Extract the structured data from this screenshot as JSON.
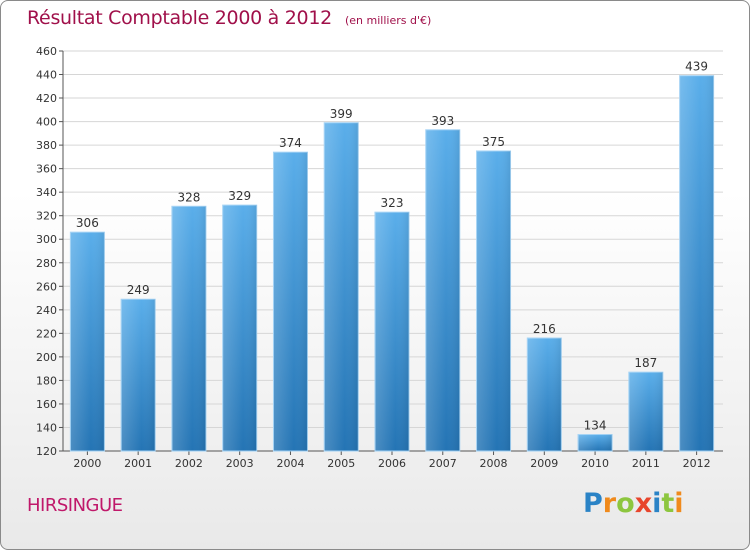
{
  "chart_data": {
    "type": "bar",
    "title": "Résultat Comptable 2000 à 2012",
    "subtitle": "(en milliers d'€)",
    "categories": [
      "2000",
      "2001",
      "2002",
      "2003",
      "2004",
      "2005",
      "2006",
      "2007",
      "2008",
      "2009",
      "2010",
      "2011",
      "2012"
    ],
    "values": [
      306,
      249,
      328,
      329,
      374,
      399,
      323,
      393,
      375,
      216,
      134,
      187,
      439
    ],
    "xlabel": "",
    "ylabel": "",
    "ylim": [
      120,
      460
    ],
    "yticks": [
      120,
      140,
      160,
      180,
      200,
      220,
      240,
      260,
      280,
      300,
      320,
      340,
      360,
      380,
      400,
      420,
      440,
      460
    ],
    "grid": true,
    "bar_color": "#3d95d8"
  },
  "commune": "HIRSINGUE",
  "brand": {
    "letters": [
      "P",
      "r",
      "o",
      "x",
      "i",
      "t",
      "i"
    ],
    "colors": [
      "#2a83c6",
      "#f08a1c",
      "#8dc63f",
      "#e8452c",
      "#2a83c6",
      "#8dc63f",
      "#f08a1c"
    ]
  }
}
